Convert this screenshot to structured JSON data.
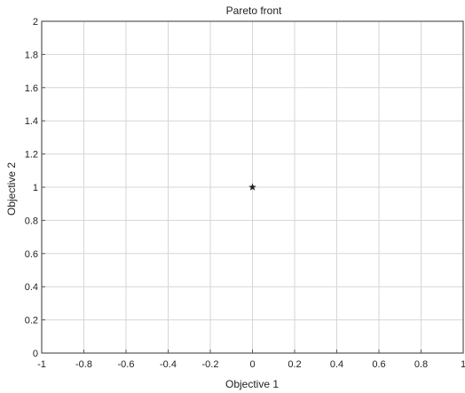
{
  "chart_data": {
    "type": "scatter",
    "title": "Pareto front",
    "xlabel": "Objective 1",
    "ylabel": "Objective 2",
    "xlim": [
      -1,
      1
    ],
    "ylim": [
      0,
      2
    ],
    "grid": true,
    "xticks": [
      -1,
      -0.8,
      -0.6,
      -0.4,
      -0.2,
      0,
      0.2,
      0.4,
      0.6,
      0.8,
      1
    ],
    "xtick_labels": [
      "-1",
      "-0.8",
      "-0.6",
      "-0.4",
      "-0.2",
      "0",
      "0.2",
      "0.4",
      "0.6",
      "0.8",
      "1"
    ],
    "yticks": [
      0,
      0.2,
      0.4,
      0.6,
      0.8,
      1,
      1.2,
      1.4,
      1.6,
      1.8,
      2
    ],
    "ytick_labels": [
      "0",
      "0.2",
      "0.4",
      "0.6",
      "0.8",
      "1",
      "1.2",
      "1.4",
      "1.6",
      "1.8",
      "2"
    ],
    "points": [
      {
        "x": 0,
        "y": 1
      }
    ],
    "marker": "star",
    "marker_color": "#222222"
  }
}
